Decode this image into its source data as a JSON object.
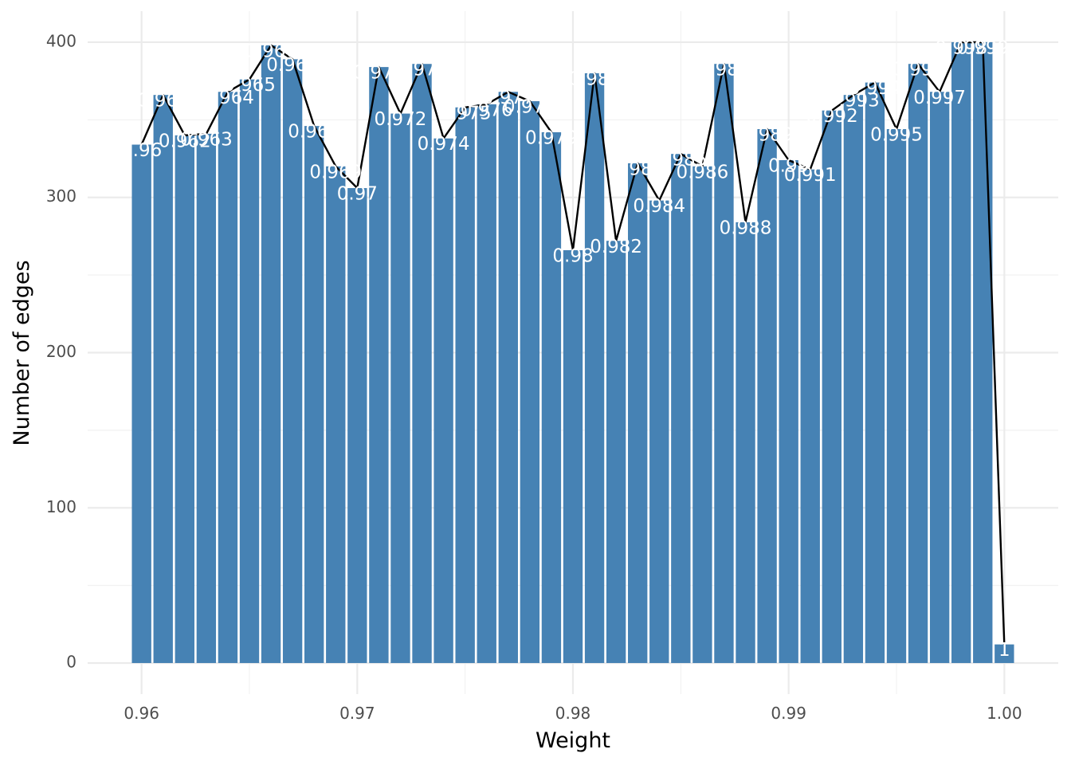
{
  "chart_data": {
    "type": "bar",
    "title": "",
    "xlabel": "Weight",
    "ylabel": "Number of edges",
    "xlim": [
      0.9575,
      1.0025
    ],
    "ylim": [
      -20,
      420
    ],
    "x_ticks": [
      0.96,
      0.97,
      0.98,
      0.99,
      1.0
    ],
    "x_tick_labels": [
      "0.96",
      "0.97",
      "0.98",
      "0.99",
      "1.00"
    ],
    "y_ticks": [
      0,
      100,
      200,
      300,
      400
    ],
    "y_tick_labels": [
      "0",
      "100",
      "200",
      "300",
      "400"
    ],
    "grid": true,
    "bar_color": "#4682b4",
    "line_color": "#000000",
    "x": [
      0.96,
      0.961,
      0.962,
      0.963,
      0.964,
      0.965,
      0.966,
      0.967,
      0.968,
      0.969,
      0.97,
      0.971,
      0.972,
      0.973,
      0.974,
      0.975,
      0.976,
      0.977,
      0.978,
      0.979,
      0.98,
      0.981,
      0.982,
      0.983,
      0.984,
      0.985,
      0.986,
      0.987,
      0.988,
      0.989,
      0.99,
      0.991,
      0.992,
      0.993,
      0.994,
      0.995,
      0.996,
      0.997,
      0.998,
      0.999,
      1.0
    ],
    "values": [
      334,
      366,
      340,
      341,
      368,
      376,
      398,
      389,
      346,
      320,
      306,
      384,
      354,
      386,
      338,
      358,
      360,
      368,
      362,
      342,
      266,
      380,
      272,
      322,
      298,
      328,
      320,
      386,
      284,
      344,
      324,
      318,
      356,
      366,
      374,
      344,
      386,
      368,
      400,
      400,
      12
    ],
    "labels": [
      "0.96",
      "0.961",
      "0.962",
      "0.963",
      "0.964",
      "0.965",
      "0.966",
      "0.967",
      "0.968",
      "0.969",
      "0.97",
      "0.971",
      "0.972",
      "0.973",
      "0.974",
      "0.975",
      "0.976",
      "0.977",
      "0.978",
      "0.979",
      "0.98",
      "0.981",
      "0.982",
      "0.983",
      "0.984",
      "0.985",
      "0.986",
      "0.987",
      "0.988",
      "0.989",
      "0.99",
      "0.991",
      "0.992",
      "0.993",
      "0.994",
      "0.995",
      "0.996",
      "0.997",
      "0.998",
      "0.999",
      "1"
    ]
  }
}
